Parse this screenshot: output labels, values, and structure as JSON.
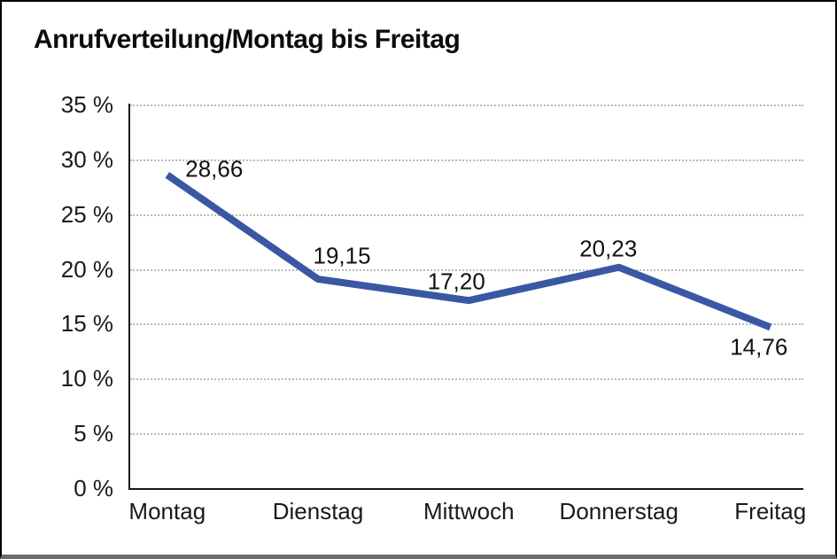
{
  "title": "Anrufverteilung/Montag bis Freitag",
  "colors": {
    "line": "#3A57A3",
    "axis": "#1a1a1a",
    "grid": "#757575",
    "background": "#FFFFFF",
    "frame_border": "#000000",
    "frame_bottom": "#6B6B6B",
    "text": "#111111"
  },
  "chart_data": {
    "type": "line",
    "title": "Anrufverteilung/Montag bis Freitag",
    "categories": [
      "Montag",
      "Dienstag",
      "Mittwoch",
      "Donnerstag",
      "Freitag"
    ],
    "values": [
      28.66,
      19.15,
      17.2,
      20.23,
      14.76
    ],
    "value_labels": [
      "28,66",
      "19,15",
      "17,20",
      "20,23",
      "14,76"
    ],
    "ylim": [
      0,
      35
    ],
    "y_ticks": [
      0,
      5,
      10,
      15,
      20,
      25,
      30,
      35
    ],
    "y_tick_labels": [
      "0 %",
      "5 %",
      "10 %",
      "15 %",
      "20 %",
      "25 %",
      "30 %",
      "35 %"
    ],
    "xlabel": "",
    "ylabel": "",
    "grid": "horizontal-dotted",
    "legend": "none",
    "line_color": "#3A57A3",
    "decimal_separator": ","
  }
}
